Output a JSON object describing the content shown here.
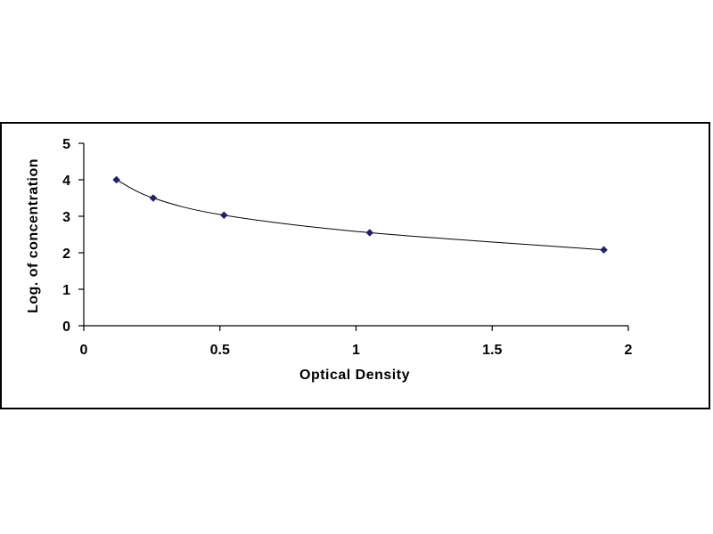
{
  "chart_data": {
    "type": "scatter",
    "title": "",
    "xlabel": "Optical Density",
    "ylabel": "Log. of concentration",
    "xlim": [
      0,
      2
    ],
    "ylim": [
      0,
      5
    ],
    "x_ticks": [
      0,
      0.5,
      1,
      1.5,
      2
    ],
    "x_tick_labels": [
      "0",
      "0.5",
      "1",
      "1.5",
      "2"
    ],
    "y_ticks": [
      0,
      1,
      2,
      3,
      4,
      5
    ],
    "y_tick_labels": [
      "0",
      "1",
      "2",
      "3",
      "4",
      "5"
    ],
    "grid": false,
    "legend": "none",
    "trendline": "smooth curve",
    "series": [
      {
        "x": [
          0.12,
          0.255,
          0.515,
          1.05,
          1.91
        ],
        "y": [
          4.0,
          3.5,
          3.03,
          2.55,
          2.08
        ]
      }
    ],
    "colors": {
      "marker": "#1f1f6e",
      "curve": "#000000",
      "axis": "#000000"
    }
  }
}
